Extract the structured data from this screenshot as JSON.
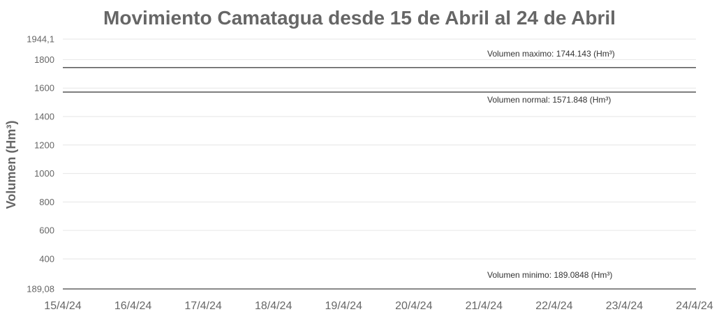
{
  "chart_data": {
    "type": "line",
    "title": "Movimiento Camatagua desde 15 de Abril al 24 de Abril",
    "ylabel": "Volumen (Hm³)",
    "xlabel": "",
    "x_categories": [
      "15/4/24",
      "16/4/24",
      "17/4/24",
      "18/4/24",
      "19/4/24",
      "20/4/24",
      "21/4/24",
      "22/4/24",
      "23/4/24",
      "24/4/24"
    ],
    "ylim": [
      189.08,
      1944.1
    ],
    "y_ticks": [
      {
        "value": 189.08,
        "label": "189,08"
      },
      {
        "value": 400,
        "label": "400"
      },
      {
        "value": 600,
        "label": "600"
      },
      {
        "value": 800,
        "label": "800"
      },
      {
        "value": 1000,
        "label": "1000"
      },
      {
        "value": 1200,
        "label": "1200"
      },
      {
        "value": 1400,
        "label": "1400"
      },
      {
        "value": 1600,
        "label": "1600"
      },
      {
        "value": 1800,
        "label": "1800"
      },
      {
        "value": 1944.1,
        "label": "1944,1"
      }
    ],
    "grid": true,
    "reference_lines": [
      {
        "value": 1744.143,
        "label": "Volumen maximo: 1744.143 (Hm³)",
        "label_position": "above"
      },
      {
        "value": 1571.848,
        "label": "Volumen normal: 1571.848 (Hm³)",
        "label_position": "below"
      },
      {
        "value": 189.0848,
        "label": "Volumen minimo: 189.0848 (Hm³)",
        "label_position": "above"
      }
    ],
    "series": []
  },
  "colors": {
    "text": "#666666",
    "grid": "#e6e6e6",
    "reference_line": "#444444",
    "reference_label": "#333333"
  }
}
